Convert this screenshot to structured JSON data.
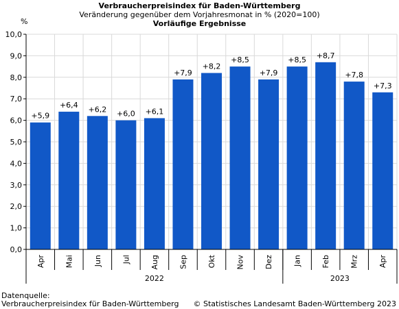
{
  "title": "Verbraucherpreisindex für Baden-Württemberg",
  "subtitle": "Veränderung gegenüber dem Vorjahresmonat in % (2020=100)",
  "subtitle2": "Vorläufige Ergebnisse",
  "footer": {
    "source_label": "Datenquelle:",
    "source_text": "Verbraucherpreisindex für Baden-Württemberg",
    "copyright": "© Statistisches Landesamt Baden-Württemberg 2023"
  },
  "colors": {
    "bar": "#1158c7",
    "grid": "#d9d9d9",
    "axis": "#000000"
  },
  "chart_data": {
    "type": "bar",
    "categories": [
      "Apr",
      "Mai",
      "Jun",
      "Jul",
      "Aug",
      "Sep",
      "Okt",
      "Nov",
      "Dez",
      "Jan",
      "Feb",
      "Mrz",
      "Apr"
    ],
    "values": [
      5.9,
      6.4,
      6.2,
      6.0,
      6.1,
      7.9,
      8.2,
      8.5,
      7.9,
      8.5,
      8.7,
      7.8,
      7.3
    ],
    "data_labels": [
      "+5,9",
      "+6,4",
      "+6,2",
      "+6,0",
      "+6,1",
      "+7,9",
      "+8,2",
      "+8,5",
      "+7,9",
      "+8,5",
      "+8,7",
      "+7,8",
      "+7,3"
    ],
    "year_groups": [
      {
        "label": "2022",
        "count": 9
      },
      {
        "label": "2023",
        "count": 4
      }
    ],
    "ylabel": "%",
    "xlabel": "",
    "ylim": [
      0,
      10
    ],
    "yticks": [
      "0,0",
      "1,0",
      "2,0",
      "3,0",
      "4,0",
      "5,0",
      "6,0",
      "7,0",
      "8,0",
      "9,0",
      "10,0"
    ],
    "grid": true,
    "legend": "none"
  }
}
